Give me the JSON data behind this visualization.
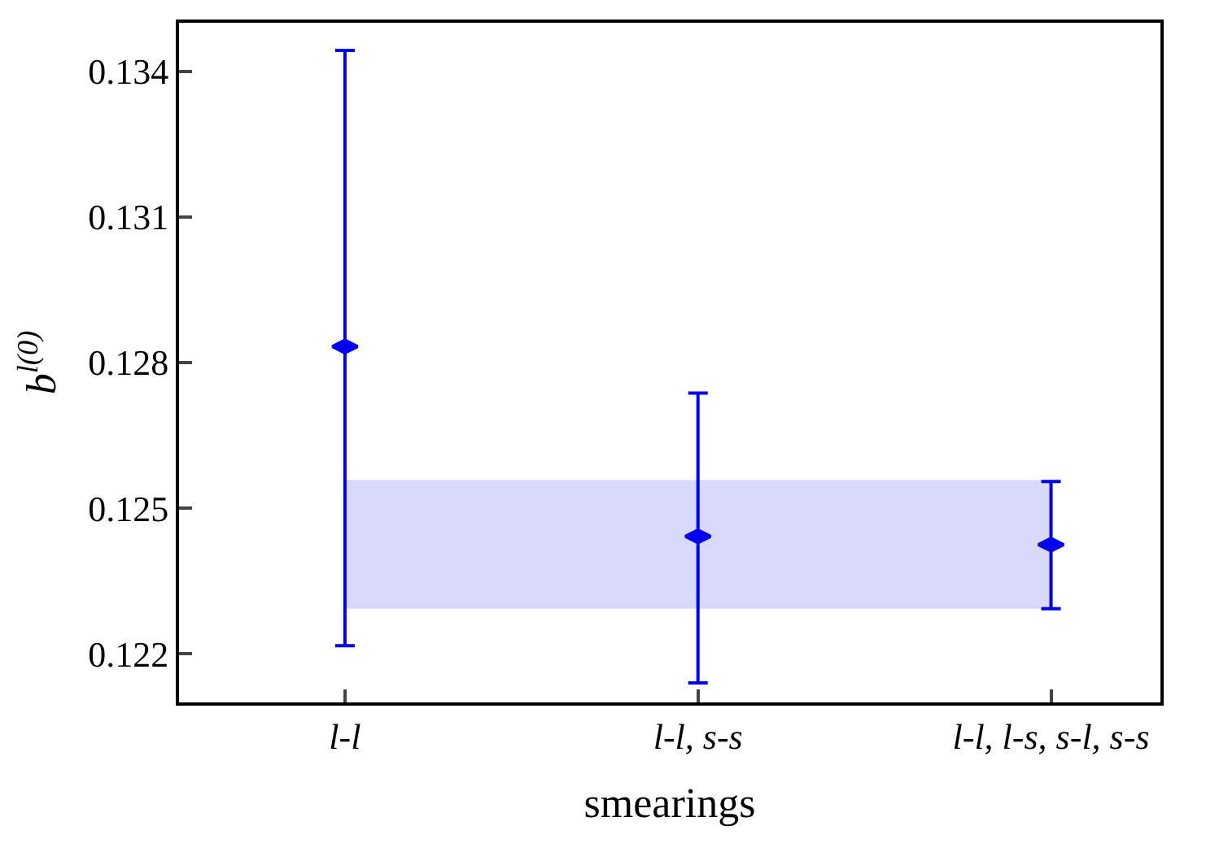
{
  "chart_data": {
    "type": "scatter",
    "xlabel": "smearings",
    "ylabel": "b$^{l(0)}$",
    "categories": [
      "l-l",
      "l-l, s-s",
      "l-l, l-s, s-l, s-s"
    ],
    "series": [
      {
        "color": "#0000ee",
        "values": [
          0.12833,
          0.12442,
          0.12425
        ],
        "errors": [
          [
            0.12217,
            0.13443
          ],
          [
            0.1214,
            0.12737
          ],
          [
            0.12293,
            0.12555
          ]
        ]
      }
    ],
    "bands": [
      {
        "axis": "y",
        "from": 0.12293,
        "to": 0.12558,
        "color": "#d8d8fa"
      }
    ],
    "ylim": [
      0.121,
      0.135
    ],
    "yticks": [
      0.122,
      0.125,
      0.128,
      0.131,
      0.134
    ],
    "grid": false,
    "marker": "diamond",
    "legend": false
  }
}
